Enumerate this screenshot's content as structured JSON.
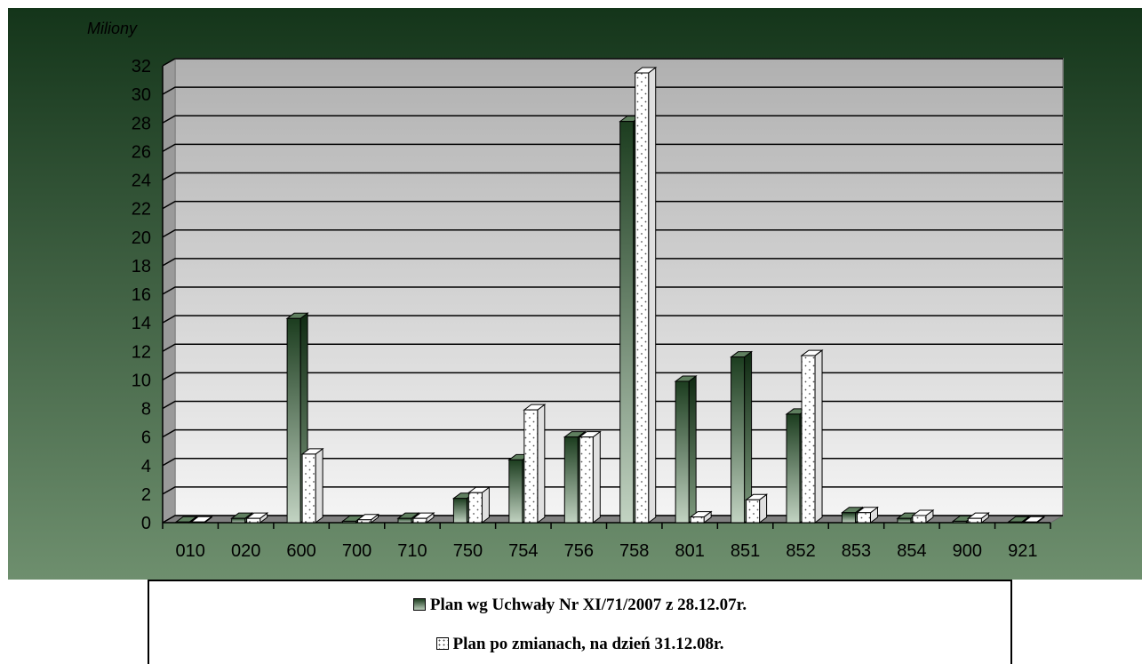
{
  "chart_data": {
    "type": "bar",
    "title": "",
    "ylabel": "Miliony",
    "xlabel": "",
    "ylim": [
      0,
      32
    ],
    "yticks": [
      0,
      2,
      4,
      6,
      8,
      10,
      12,
      14,
      16,
      18,
      20,
      22,
      24,
      26,
      28,
      30,
      32
    ],
    "grid": true,
    "legend_position": "bottom",
    "categories": [
      "010",
      "020",
      "600",
      "700",
      "710",
      "750",
      "754",
      "756",
      "758",
      "801",
      "851",
      "852",
      "853",
      "854",
      "900",
      "921"
    ],
    "series": [
      {
        "name": "Plan wg Uchwały Nr XI/71/2007 z 28.12.07r.",
        "values": [
          0.05,
          0.3,
          14.3,
          0.1,
          0.3,
          1.7,
          4.4,
          6.0,
          28.1,
          9.9,
          11.6,
          7.6,
          0.7,
          0.3,
          0.1,
          0.05
        ]
      },
      {
        "name": "Plan po zmianach, na dzień 31.12.08r.",
        "values": [
          0.05,
          0.3,
          4.8,
          0.2,
          0.3,
          2.1,
          7.9,
          6.0,
          31.5,
          0.4,
          1.6,
          11.7,
          0.7,
          0.5,
          0.3,
          0.05
        ]
      }
    ],
    "colors": {
      "background_top": "#14351a",
      "background_bottom": "#6e8f6e",
      "plot_top": "#b0b0b0",
      "plot_bottom": "#f4f4f4",
      "floor": "#808080",
      "series1_dark": "#1c3d1f",
      "series1_light": "#c2d3c2",
      "series2_fill": "#ffffff"
    }
  }
}
